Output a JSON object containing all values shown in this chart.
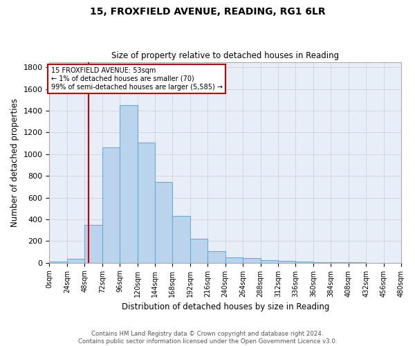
{
  "title": "15, FROXFIELD AVENUE, READING, RG1 6LR",
  "subtitle": "Size of property relative to detached houses in Reading",
  "xlabel": "Distribution of detached houses by size in Reading",
  "ylabel": "Number of detached properties",
  "bar_color": "#bad4ed",
  "bar_edge_color": "#6aaad4",
  "grid_color": "#cccccc",
  "bg_color": "#e8eef8",
  "vline_x": 53,
  "vline_color": "#cc0000",
  "annotation_line1": "15 FROXFIELD AVENUE: 53sqm",
  "annotation_line2": "← 1% of detached houses are smaller (70)",
  "annotation_line3": "99% of semi-detached houses are larger (5,585) →",
  "annotation_box_color": "#cc0000",
  "footnote1": "Contains HM Land Registry data © Crown copyright and database right 2024.",
  "footnote2": "Contains public sector information licensed under the Open Government Licence v3.0.",
  "bin_edges": [
    0,
    24,
    48,
    72,
    96,
    120,
    144,
    168,
    192,
    216,
    240,
    264,
    288,
    312,
    336,
    360,
    384,
    408,
    432,
    456,
    480
  ],
  "bar_heights": [
    10,
    35,
    350,
    1060,
    1450,
    1110,
    745,
    430,
    220,
    105,
    50,
    40,
    25,
    20,
    10,
    5,
    3,
    2,
    1,
    0
  ],
  "ylim": [
    0,
    1850
  ],
  "yticks": [
    0,
    200,
    400,
    600,
    800,
    1000,
    1200,
    1400,
    1600,
    1800
  ]
}
